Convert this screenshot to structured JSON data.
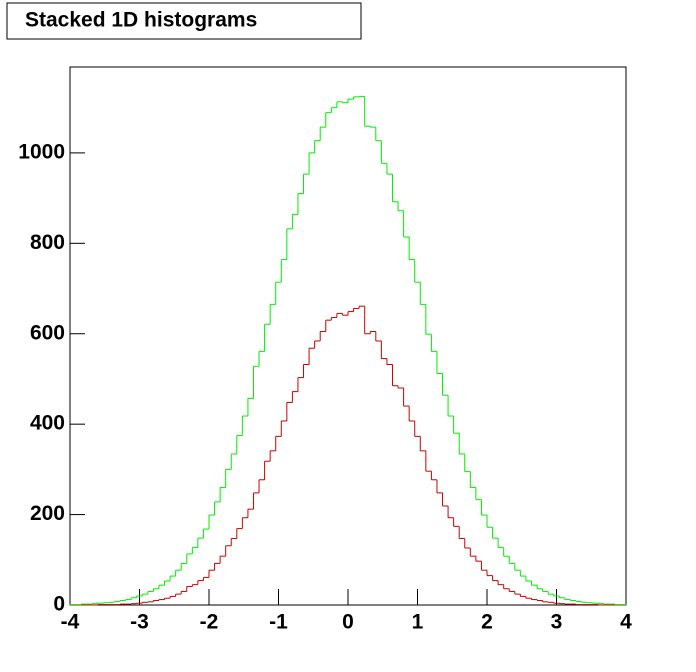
{
  "chart_data": {
    "type": "histogram",
    "stacked": true,
    "title": "Stacked 1D histograms",
    "bins": [
      -4,
      -3.92,
      -3.84,
      -3.76,
      -3.68,
      -3.6,
      -3.52,
      -3.44,
      -3.36,
      -3.28,
      -3.2,
      -3.12,
      -3.04,
      -2.96,
      -2.88,
      -2.8,
      -2.72,
      -2.64,
      -2.56,
      -2.48,
      -2.4,
      -2.32,
      -2.24,
      -2.16,
      -2.08,
      -2,
      -1.92,
      -1.84,
      -1.76,
      -1.68,
      -1.6,
      -1.52,
      -1.44,
      -1.36,
      -1.28,
      -1.2,
      -1.12,
      -1.04,
      -0.96,
      -0.88,
      -0.8,
      -0.72,
      -0.64,
      -0.56,
      -0.48,
      -0.4,
      -0.32,
      -0.24,
      -0.16,
      -0.08,
      0,
      0.08,
      0.16,
      0.24,
      0.32,
      0.4,
      0.48,
      0.56,
      0.64,
      0.72,
      0.8,
      0.88,
      0.96,
      1.04,
      1.12,
      1.2,
      1.28,
      1.36,
      1.44,
      1.52,
      1.6,
      1.68,
      1.76,
      1.84,
      1.92,
      2,
      2.08,
      2.16,
      2.24,
      2.32,
      2.4,
      2.48,
      2.56,
      2.64,
      2.72,
      2.8,
      2.88,
      2.96,
      3.04,
      3.12,
      3.2,
      3.28,
      3.36,
      3.44,
      3.52,
      3.6,
      3.68,
      3.76,
      3.84,
      3.92,
      4
    ],
    "series": [
      {
        "color": "#cc0000",
        "values": [
          0,
          0,
          0,
          0,
          0,
          1,
          1,
          1,
          1,
          2,
          2,
          3,
          4,
          6,
          7,
          10,
          12,
          15,
          19,
          24,
          30,
          41,
          45,
          54,
          61,
          77,
          92,
          108,
          131,
          147,
          169,
          193,
          212,
          248,
          277,
          318,
          341,
          373,
          407,
          448,
          472,
          503,
          532,
          568,
          584,
          605,
          630,
          636,
          645,
          641,
          649,
          656,
          661,
          600,
          605,
          584,
          545,
          532,
          485,
          480,
          440,
          407,
          373,
          341,
          296,
          277,
          248,
          219,
          193,
          174,
          147,
          126,
          108,
          97,
          77,
          65,
          54,
          45,
          36,
          30,
          24,
          19,
          15,
          12,
          10,
          7,
          6,
          4,
          3,
          2,
          2,
          1,
          1,
          1,
          1,
          0,
          0,
          0,
          0,
          0
        ]
      },
      {
        "color": "#00ee00",
        "values": [
          1,
          1,
          2,
          2,
          3,
          3,
          4,
          5,
          7,
          8,
          10,
          13,
          16,
          18,
          23,
          26,
          32,
          38,
          45,
          53,
          62,
          72,
          82,
          94,
          107,
          122,
          136,
          152,
          169,
          187,
          206,
          225,
          245,
          280,
          284,
          303,
          324,
          341,
          357,
          384,
          392,
          407,
          421,
          432,
          443,
          452,
          459,
          464,
          468,
          470,
          470,
          468,
          464,
          459,
          452,
          443,
          432,
          421,
          407,
          392,
          374,
          357,
          341,
          324,
          303,
          284,
          264,
          245,
          225,
          206,
          187,
          169,
          152,
          136,
          122,
          107,
          94,
          82,
          72,
          62,
          53,
          45,
          38,
          32,
          26,
          23,
          18,
          16,
          13,
          10,
          8,
          7,
          5,
          4,
          3,
          3,
          2,
          2,
          1,
          1
        ]
      }
    ],
    "xlim": [
      -4,
      4
    ],
    "xticks": [
      -4,
      -3,
      -2,
      -1,
      0,
      1,
      2,
      3,
      4
    ],
    "ylim": [
      0,
      1190
    ],
    "yticks": [
      0,
      200,
      400,
      600,
      800,
      1000
    ]
  }
}
